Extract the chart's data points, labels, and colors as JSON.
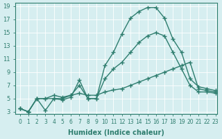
{
  "title": "",
  "xlabel": "Humidex (Indice chaleur)",
  "ylabel": "",
  "background_color": "#d6eef0",
  "line_color": "#2e7d6e",
  "xlim": [
    0,
    23
  ],
  "ylim": [
    3,
    19
  ],
  "xticks": [
    0,
    1,
    2,
    3,
    4,
    5,
    6,
    7,
    8,
    9,
    10,
    11,
    12,
    13,
    14,
    15,
    16,
    17,
    18,
    19,
    20,
    21,
    22,
    23
  ],
  "yticks": [
    3,
    5,
    7,
    9,
    11,
    13,
    15,
    17,
    19
  ],
  "line1_x": [
    0,
    1,
    2,
    3,
    4,
    5,
    6,
    7,
    8,
    9,
    10,
    11,
    12,
    13,
    14,
    15,
    16,
    17,
    18,
    19,
    20,
    21,
    22,
    23
  ],
  "line1_y": [
    3.5,
    3.0,
    5.0,
    3.2,
    5.0,
    4.8,
    5.2,
    7.8,
    5.0,
    5.0,
    10.0,
    12.0,
    14.8,
    17.2,
    18.2,
    18.8,
    18.8,
    17.2,
    14.0,
    12.0,
    8.0,
    6.8,
    6.5,
    6.2
  ],
  "line2_x": [
    0,
    1,
    2,
    3,
    4,
    5,
    6,
    7,
    8,
    9,
    10,
    11,
    12,
    13,
    14,
    15,
    16,
    17,
    18,
    19,
    20,
    21,
    22,
    23
  ],
  "line2_y": [
    3.5,
    3.0,
    5.0,
    5.0,
    5.0,
    5.0,
    5.5,
    7.0,
    5.0,
    5.0,
    8.0,
    9.5,
    10.5,
    12.0,
    13.5,
    14.5,
    15.0,
    14.5,
    12.0,
    9.5,
    7.0,
    6.0,
    6.0,
    5.8
  ],
  "line3_x": [
    0,
    1,
    2,
    3,
    4,
    5,
    6,
    7,
    8,
    9,
    10,
    11,
    12,
    13,
    14,
    15,
    16,
    17,
    18,
    19,
    20,
    21,
    22,
    23
  ],
  "line3_y": [
    3.5,
    3.0,
    5.0,
    5.0,
    5.5,
    5.2,
    5.5,
    5.8,
    5.5,
    5.5,
    6.0,
    6.3,
    6.5,
    7.0,
    7.5,
    8.0,
    8.5,
    9.0,
    9.5,
    10.0,
    10.5,
    6.5,
    6.2,
    6.0
  ]
}
